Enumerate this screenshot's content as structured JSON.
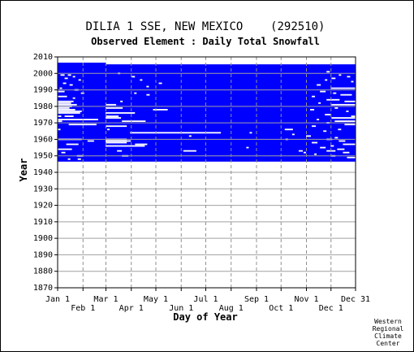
{
  "chart_data": {
    "type": "heatmap",
    "title": "DILIA 1 SSE, NEW MEXICO    (292510)",
    "subtitle": "Observed Element : Daily Total Snowfall",
    "xlabel": "Day of Year",
    "ylabel": "Year",
    "ylim": [
      1870,
      2010
    ],
    "xlim": [
      1,
      365
    ],
    "x_ticks_top": [
      "Jan 1",
      "Mar 1",
      "May 1",
      "Jul 1",
      "Sep 1",
      "Nov 1",
      "Dec 31"
    ],
    "x_ticks_bottom": [
      "Feb 1",
      "Apr 1",
      "Jun 1",
      "Aug 1",
      "Oct 1",
      "Dec 1"
    ],
    "y_ticks": [
      "2010",
      "2000",
      "1990",
      "1980",
      "1970",
      "1960",
      "1950",
      "1940",
      "1930",
      "1920",
      "1910",
      "1900",
      "1890",
      "1880",
      "1870"
    ],
    "grid": true,
    "data_color": "#0000ff",
    "gap_color": "#ffffff",
    "data_coverage": [
      {
        "days": [
          1,
          59
        ],
        "years": [
          1947,
          2006
        ]
      },
      {
        "days": [
          60,
          365
        ],
        "years": [
          1947,
          2005
        ]
      }
    ],
    "missing_segments": [
      {
        "year": 1999,
        "days": [
          5,
          9
        ]
      },
      {
        "year": 1999,
        "days": [
          14,
          17
        ]
      },
      {
        "year": 1998,
        "days": [
          20,
          22
        ]
      },
      {
        "year": 1997,
        "days": [
          10,
          13
        ]
      },
      {
        "year": 1996,
        "days": [
          27,
          29
        ]
      },
      {
        "year": 1994,
        "days": [
          8,
          11
        ]
      },
      {
        "year": 1993,
        "days": [
          16,
          19
        ]
      },
      {
        "year": 1991,
        "days": [
          4,
          6
        ]
      },
      {
        "year": 1990,
        "days": [
          22,
          26
        ]
      },
      {
        "year": 1989,
        "days": [
          1,
          9
        ]
      },
      {
        "year": 1988,
        "days": [
          30,
          33
        ]
      },
      {
        "year": 1986,
        "days": [
          1,
          12
        ]
      },
      {
        "year": 1985,
        "days": [
          20,
          22
        ]
      },
      {
        "year": 1983,
        "days": [
          1,
          20
        ]
      },
      {
        "year": 1982,
        "days": [
          1,
          17
        ]
      },
      {
        "year": 1981,
        "days": [
          1,
          24
        ]
      },
      {
        "year": 1980,
        "days": [
          1,
          18
        ]
      },
      {
        "year": 1979,
        "days": [
          1,
          15
        ]
      },
      {
        "year": 1978,
        "days": [
          1,
          22
        ]
      },
      {
        "year": 1977,
        "days": [
          1,
          30
        ]
      },
      {
        "year": 1976,
        "days": [
          1,
          28
        ]
      },
      {
        "year": 1974,
        "days": [
          1,
          5
        ]
      },
      {
        "year": 1974,
        "days": [
          10,
          20
        ]
      },
      {
        "year": 1972,
        "days": [
          1,
          50
        ]
      },
      {
        "year": 1971,
        "days": [
          1,
          6
        ]
      },
      {
        "year": 1969,
        "days": [
          15,
          48
        ]
      },
      {
        "year": 1966,
        "days": [
          1,
          4
        ]
      },
      {
        "year": 1960,
        "days": [
          1,
          30
        ]
      },
      {
        "year": 1959,
        "days": [
          38,
          45
        ]
      },
      {
        "year": 1957,
        "days": [
          12,
          26
        ]
      },
      {
        "year": 1954,
        "days": [
          1,
          18
        ]
      },
      {
        "year": 1952,
        "days": [
          6,
          10
        ]
      },
      {
        "year": 1950,
        "days": [
          25,
          32
        ]
      },
      {
        "year": 1948,
        "days": [
          14,
          16
        ]
      },
      {
        "year": 1948,
        "days": [
          26,
          29
        ]
      },
      {
        "year": 2000,
        "days": [
          75,
          77
        ]
      },
      {
        "year": 1998,
        "days": [
          92,
          95
        ]
      },
      {
        "year": 1996,
        "days": [
          102,
          104
        ]
      },
      {
        "year": 1994,
        "days": [
          125,
          128
        ]
      },
      {
        "year": 1992,
        "days": [
          110,
          112
        ]
      },
      {
        "year": 1988,
        "days": [
          95,
          97
        ]
      },
      {
        "year": 1987,
        "days": [
          110,
          113
        ]
      },
      {
        "year": 1983,
        "days": [
          78,
          80
        ]
      },
      {
        "year": 1981,
        "days": [
          60,
          72
        ]
      },
      {
        "year": 1979,
        "days": [
          60,
          80
        ]
      },
      {
        "year": 1978,
        "days": [
          118,
          135
        ]
      },
      {
        "year": 1976,
        "days": [
          60,
          95
        ]
      },
      {
        "year": 1974,
        "days": [
          60,
          75
        ]
      },
      {
        "year": 1973,
        "days": [
          60,
          78
        ]
      },
      {
        "year": 1971,
        "days": [
          80,
          108
        ]
      },
      {
        "year": 1968,
        "days": [
          60,
          85
        ]
      },
      {
        "year": 1966,
        "days": [
          62,
          64
        ]
      },
      {
        "year": 1964,
        "days": [
          90,
          200
        ]
      },
      {
        "year": 1960,
        "days": [
          60,
          85
        ]
      },
      {
        "year": 1959,
        "days": [
          60,
          90
        ]
      },
      {
        "year": 1958,
        "days": [
          60,
          85
        ]
      },
      {
        "year": 1956,
        "days": [
          60,
          107
        ]
      },
      {
        "year": 1953,
        "days": [
          74,
          79
        ]
      },
      {
        "year": 1950,
        "days": [
          80,
          87
        ]
      },
      {
        "year": 1962,
        "days": [
          162,
          164
        ]
      },
      {
        "year": 1957,
        "days": [
          96,
          110
        ]
      },
      {
        "year": 1953,
        "days": [
          155,
          170
        ]
      },
      {
        "year": 1955,
        "days": [
          232,
          234
        ]
      },
      {
        "year": 1964,
        "days": [
          236,
          238
        ]
      },
      {
        "year": 1960,
        "days": [
          280,
          282
        ]
      },
      {
        "year": 1966,
        "days": [
          279,
          288
        ]
      },
      {
        "year": 1963,
        "days": [
          288,
          290
        ]
      },
      {
        "year": 1952,
        "days": [
          302,
          304
        ]
      },
      {
        "year": 1953,
        "days": [
          296,
          300
        ]
      },
      {
        "year": 2001,
        "days": [
          330,
          333
        ]
      },
      {
        "year": 1999,
        "days": [
          345,
          347
        ]
      },
      {
        "year": 1998,
        "days": [
          355,
          358
        ]
      },
      {
        "year": 1997,
        "days": [
          336,
          340
        ]
      },
      {
        "year": 1996,
        "days": [
          328,
          330
        ]
      },
      {
        "year": 1995,
        "days": [
          360,
          362
        ]
      },
      {
        "year": 1993,
        "days": [
          318,
          322
        ]
      },
      {
        "year": 1991,
        "days": [
          335,
          365
        ]
      },
      {
        "year": 1989,
        "days": [
          322,
          328
        ]
      },
      {
        "year": 1988,
        "days": [
          338,
          341
        ]
      },
      {
        "year": 1987,
        "days": [
          347,
          360
        ]
      },
      {
        "year": 1986,
        "days": [
          312,
          315
        ]
      },
      {
        "year": 1984,
        "days": [
          330,
          345
        ]
      },
      {
        "year": 1983,
        "days": [
          352,
          365
        ]
      },
      {
        "year": 1982,
        "days": [
          320,
          322
        ]
      },
      {
        "year": 1981,
        "days": [
          336,
          365
        ]
      },
      {
        "year": 1979,
        "days": [
          340,
          343
        ]
      },
      {
        "year": 1978,
        "days": [
          310,
          314
        ]
      },
      {
        "year": 1977,
        "days": [
          354,
          356
        ]
      },
      {
        "year": 1975,
        "days": [
          328,
          334
        ]
      },
      {
        "year": 1974,
        "days": [
          360,
          365
        ]
      },
      {
        "year": 1973,
        "days": [
          336,
          365
        ]
      },
      {
        "year": 1972,
        "days": [
          318,
          320
        ]
      },
      {
        "year": 1971,
        "days": [
          340,
          365
        ]
      },
      {
        "year": 1970,
        "days": [
          330,
          333
        ]
      },
      {
        "year": 1969,
        "days": [
          352,
          365
        ]
      },
      {
        "year": 1968,
        "days": [
          312,
          316
        ]
      },
      {
        "year": 1966,
        "days": [
          344,
          347
        ]
      },
      {
        "year": 1965,
        "days": [
          326,
          329
        ]
      },
      {
        "year": 1962,
        "days": [
          305,
          310
        ]
      },
      {
        "year": 1961,
        "days": [
          340,
          343
        ]
      },
      {
        "year": 1960,
        "days": [
          330,
          336
        ]
      },
      {
        "year": 1959,
        "days": [
          345,
          352
        ]
      },
      {
        "year": 1958,
        "days": [
          312,
          318
        ]
      },
      {
        "year": 1957,
        "days": [
          350,
          365
        ]
      },
      {
        "year": 1956,
        "days": [
          335,
          338
        ]
      },
      {
        "year": 1955,
        "days": [
          322,
          328
        ]
      },
      {
        "year": 1954,
        "days": [
          343,
          351
        ]
      },
      {
        "year": 1953,
        "days": [
          330,
          340
        ]
      },
      {
        "year": 1952,
        "days": [
          350,
          357
        ]
      },
      {
        "year": 1951,
        "days": [
          315,
          317
        ]
      },
      {
        "year": 1950,
        "days": [
          336,
          340
        ]
      },
      {
        "year": 1949,
        "days": [
          355,
          365
        ]
      }
    ]
  },
  "credit": [
    "Western",
    "Regional",
    "Climate",
    "Center"
  ]
}
